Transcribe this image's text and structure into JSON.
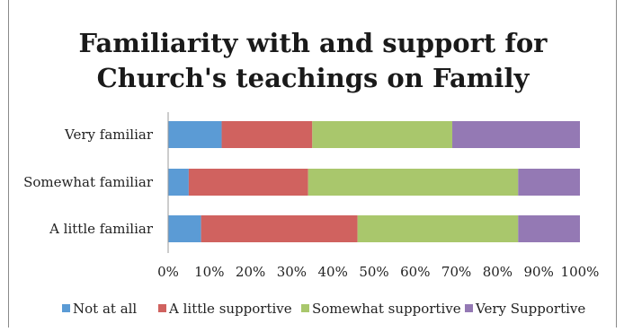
{
  "chart_data": {
    "type": "bar",
    "orientation": "horizontal",
    "stacked": "100%",
    "title_lines": [
      "Familiarity with and support for",
      "Church's teachings on Family"
    ],
    "categories": [
      "Very familiar",
      "Somewhat familiar",
      "A little familiar"
    ],
    "series": [
      {
        "name": "Not at all",
        "color": "#5b9bd5",
        "values": [
          13,
          5,
          8
        ]
      },
      {
        "name": "A little supportive",
        "color": "#d0625f",
        "values": [
          22,
          29,
          38
        ]
      },
      {
        "name": "Somewhat supportive",
        "color": "#a9c76c",
        "values": [
          34,
          51,
          39
        ]
      },
      {
        "name": "Very Supportive",
        "color": "#9479b4",
        "values": [
          31,
          15,
          15
        ]
      }
    ],
    "x_ticks": [
      "0%",
      "10%",
      "20%",
      "30%",
      "40%",
      "50%",
      "60%",
      "70%",
      "80%",
      "90%",
      "100%"
    ],
    "xlim": [
      0,
      100
    ],
    "grid": false,
    "legend_position": "bottom"
  }
}
